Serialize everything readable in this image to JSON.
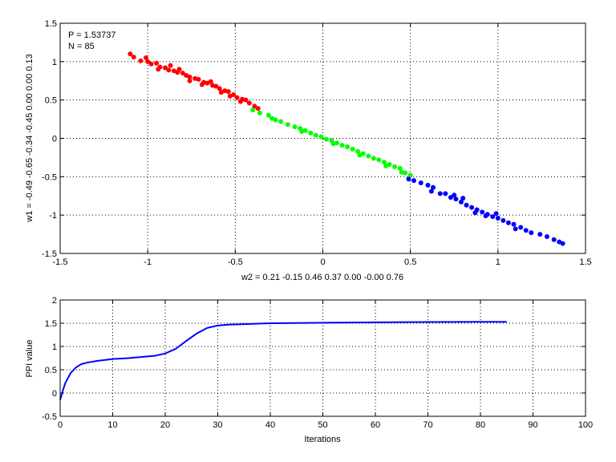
{
  "chart_data": [
    {
      "type": "scatter",
      "title": "",
      "xlabel": "w2 = 0.21  -0.15  0.46  0.37  0.00  -0.00  0.76",
      "ylabel": "w1 = -0.49  -0.65  -0.34  -0.45  0.00  0.00  0.13",
      "xlim": [
        -1.5,
        1.5
      ],
      "ylim": [
        -1.5,
        1.5
      ],
      "xticks": [
        "-1.5",
        "-1",
        "-0.5",
        "0",
        "0.5",
        "1",
        "1.5"
      ],
      "yticks": [
        "-1.5",
        "-1",
        "-0.5",
        "0",
        "0.5",
        "1",
        "1.5"
      ],
      "grid": true,
      "annotations": [
        "P = 1.53737",
        "N = 85"
      ],
      "colors": {
        "red": "#ff0000",
        "green": "#00ff00",
        "blue": "#0000ff"
      },
      "series": [
        {
          "color": "red",
          "points": [
            [
              -1.1,
              1.1
            ],
            [
              -1.08,
              1.06
            ],
            [
              -1.04,
              1.01
            ],
            [
              -1.01,
              1.05
            ],
            [
              -1.0,
              1.0
            ],
            [
              -0.98,
              0.97
            ],
            [
              -0.95,
              0.98
            ],
            [
              -0.93,
              0.93
            ],
            [
              -0.9,
              0.92
            ],
            [
              -0.88,
              0.89
            ],
            [
              -0.85,
              0.88
            ],
            [
              -0.83,
              0.86
            ],
            [
              -0.8,
              0.85
            ],
            [
              -0.78,
              0.82
            ],
            [
              -0.76,
              0.8
            ],
            [
              -0.73,
              0.78
            ],
            [
              -0.71,
              0.77
            ],
            [
              -0.68,
              0.73
            ],
            [
              -0.66,
              0.72
            ],
            [
              -0.63,
              0.69
            ],
            [
              -0.61,
              0.68
            ],
            [
              -0.59,
              0.65
            ],
            [
              -0.56,
              0.62
            ],
            [
              -0.54,
              0.61
            ],
            [
              -0.51,
              0.57
            ],
            [
              -0.49,
              0.53
            ],
            [
              -0.46,
              0.51
            ],
            [
              -0.44,
              0.5
            ],
            [
              -0.42,
              0.46
            ],
            [
              -0.39,
              0.42
            ],
            [
              -0.37,
              0.39
            ],
            [
              -0.87,
              0.95
            ],
            [
              -0.82,
              0.9
            ],
            [
              -0.76,
              0.75
            ],
            [
              -0.69,
              0.7
            ],
            [
              -0.64,
              0.74
            ],
            [
              -0.58,
              0.6
            ],
            [
              -0.53,
              0.55
            ],
            [
              -0.47,
              0.48
            ],
            [
              -0.94,
              0.9
            ]
          ]
        },
        {
          "color": "green",
          "points": [
            [
              -0.4,
              0.37
            ],
            [
              -0.36,
              0.33
            ],
            [
              -0.31,
              0.3
            ],
            [
              -0.27,
              0.24
            ],
            [
              -0.24,
              0.22
            ],
            [
              -0.2,
              0.18
            ],
            [
              -0.16,
              0.15
            ],
            [
              -0.13,
              0.13
            ],
            [
              -0.1,
              0.1
            ],
            [
              -0.07,
              0.07
            ],
            [
              -0.04,
              0.04
            ],
            [
              -0.01,
              0.02
            ],
            [
              0.02,
              -0.01
            ],
            [
              0.05,
              -0.03
            ],
            [
              0.08,
              -0.06
            ],
            [
              0.11,
              -0.09
            ],
            [
              0.14,
              -0.11
            ],
            [
              0.17,
              -0.14
            ],
            [
              0.2,
              -0.17
            ],
            [
              0.23,
              -0.2
            ],
            [
              0.26,
              -0.23
            ],
            [
              0.29,
              -0.26
            ],
            [
              0.32,
              -0.28
            ],
            [
              0.35,
              -0.31
            ],
            [
              0.38,
              -0.34
            ],
            [
              0.41,
              -0.37
            ],
            [
              0.44,
              -0.39
            ],
            [
              0.47,
              -0.45
            ],
            [
              0.5,
              -0.48
            ],
            [
              -0.29,
              0.26
            ],
            [
              -0.12,
              0.09
            ],
            [
              0.06,
              -0.07
            ],
            [
              0.21,
              -0.22
            ],
            [
              0.36,
              -0.36
            ],
            [
              0.45,
              -0.44
            ]
          ]
        },
        {
          "color": "blue",
          "points": [
            [
              0.49,
              -0.53
            ],
            [
              0.52,
              -0.55
            ],
            [
              0.56,
              -0.58
            ],
            [
              0.6,
              -0.61
            ],
            [
              0.63,
              -0.64
            ],
            [
              0.67,
              -0.72
            ],
            [
              0.7,
              -0.72
            ],
            [
              0.73,
              -0.77
            ],
            [
              0.76,
              -0.79
            ],
            [
              0.79,
              -0.83
            ],
            [
              0.82,
              -0.87
            ],
            [
              0.85,
              -0.9
            ],
            [
              0.88,
              -0.93
            ],
            [
              0.91,
              -0.96
            ],
            [
              0.94,
              -0.99
            ],
            [
              0.97,
              -1.02
            ],
            [
              1.0,
              -1.04
            ],
            [
              1.03,
              -1.07
            ],
            [
              1.06,
              -1.1
            ],
            [
              1.09,
              -1.12
            ],
            [
              1.13,
              -1.16
            ],
            [
              1.16,
              -1.2
            ],
            [
              1.19,
              -1.23
            ],
            [
              1.24,
              -1.25
            ],
            [
              1.28,
              -1.28
            ],
            [
              1.32,
              -1.32
            ],
            [
              1.35,
              -1.35
            ],
            [
              1.37,
              -1.37
            ],
            [
              0.62,
              -0.69
            ],
            [
              0.75,
              -0.74
            ],
            [
              0.87,
              -0.97
            ],
            [
              0.99,
              -0.98
            ],
            [
              1.1,
              -1.18
            ],
            [
              0.8,
              -0.78
            ],
            [
              0.93,
              -1.01
            ]
          ]
        }
      ]
    },
    {
      "type": "line",
      "title": "",
      "xlabel": "Iterations",
      "ylabel": "PPI value",
      "xlim": [
        0,
        100
      ],
      "ylim": [
        -0.5,
        2
      ],
      "xticks": [
        "0",
        "10",
        "20",
        "30",
        "40",
        "50",
        "60",
        "70",
        "80",
        "90",
        "100"
      ],
      "yticks": [
        "-0.5",
        "0",
        "0.5",
        "1",
        "1.5",
        "2"
      ],
      "grid": true,
      "series": [
        {
          "color": "#0000ff",
          "x": [
            0,
            0.5,
            1,
            2,
            3,
            4,
            5,
            7,
            10,
            13,
            16,
            18,
            20,
            22,
            24,
            26,
            28,
            30,
            32,
            35,
            40,
            50,
            60,
            70,
            80,
            85
          ],
          "y": [
            -0.15,
            0.05,
            0.22,
            0.43,
            0.55,
            0.62,
            0.65,
            0.69,
            0.73,
            0.75,
            0.78,
            0.8,
            0.85,
            0.95,
            1.12,
            1.28,
            1.4,
            1.45,
            1.47,
            1.48,
            1.5,
            1.51,
            1.52,
            1.525,
            1.53,
            1.53
          ]
        }
      ]
    }
  ]
}
